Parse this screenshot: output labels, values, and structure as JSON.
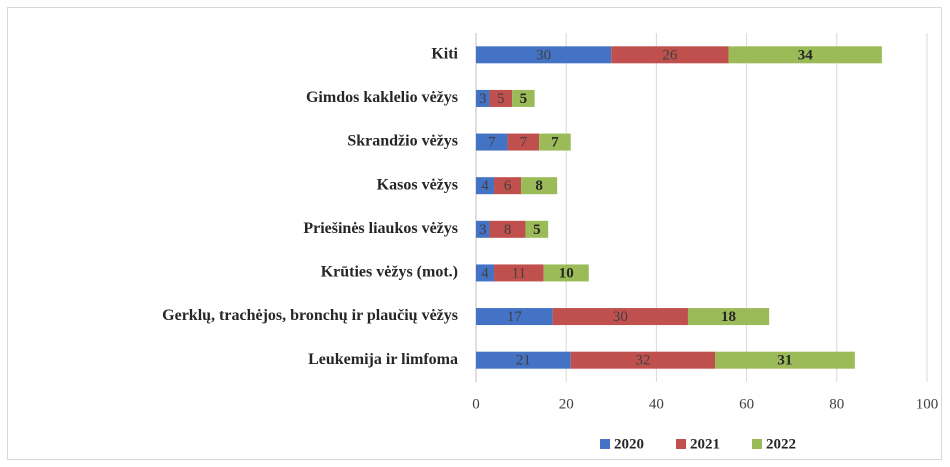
{
  "chart_data": {
    "type": "stacked_bar_horizontal",
    "categories": [
      "Kiti",
      "Gimdos kaklelio vėžys",
      "Skrandžio vėžys",
      "Kasos vėžys",
      "Priešinės liaukos vėžys",
      "Krūties vėžys (mot.)",
      "Gerklų, trachėjos, bronchų ir plaučių vėžys",
      "Leukemija ir limfoma"
    ],
    "series": [
      {
        "name": "2020",
        "color": "#4472c4",
        "values": [
          30,
          3,
          7,
          4,
          3,
          4,
          17,
          21
        ]
      },
      {
        "name": "2021",
        "color": "#c0504d",
        "values": [
          26,
          5,
          7,
          6,
          8,
          11,
          30,
          32
        ]
      },
      {
        "name": "2022",
        "color": "#9bbb59",
        "values": [
          34,
          5,
          7,
          8,
          5,
          10,
          18,
          31
        ]
      }
    ],
    "xlim": [
      0,
      100
    ],
    "xticks": [
      0,
      20,
      40,
      60,
      80,
      100
    ],
    "grid": true,
    "legend": "bottom"
  }
}
